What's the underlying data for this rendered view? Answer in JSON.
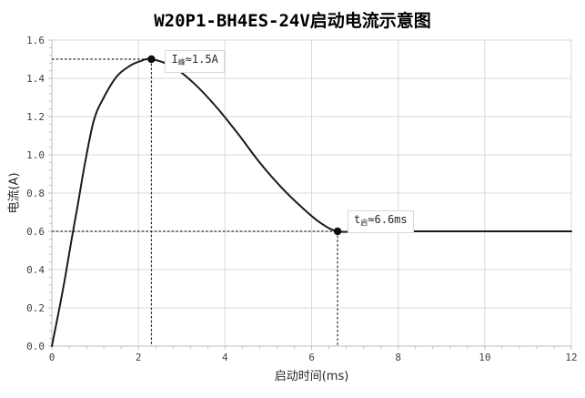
{
  "chart_data": {
    "type": "line",
    "title": "W20P1-BH4ES-24V启动电流示意图",
    "xlabel": "启动时间(ms)",
    "ylabel": "电流(A)",
    "xlim": [
      0,
      12
    ],
    "ylim": [
      0,
      1.6
    ],
    "x_tick_values": [
      0,
      2,
      4,
      6,
      8,
      10,
      12
    ],
    "x_tick_labels": [
      "0",
      "2",
      "4",
      "6",
      "8",
      "10",
      "12"
    ],
    "y_tick_values": [
      0,
      0.2,
      0.4,
      0.6,
      0.8,
      1.0,
      1.2,
      1.4,
      1.6
    ],
    "y_tick_labels": [
      "0.0",
      "0.2",
      "0.4",
      "0.6",
      "0.8",
      "1.0",
      "1.2",
      "1.4",
      "1.6"
    ],
    "x_minor_step": 0.4,
    "y_minor_step": 0.04,
    "grid": true,
    "legend": "none",
    "series": [
      {
        "name": "启动电流",
        "points": [
          [
            0,
            0
          ],
          [
            0.15,
            0.17
          ],
          [
            0.3,
            0.35
          ],
          [
            0.45,
            0.55
          ],
          [
            0.6,
            0.74
          ],
          [
            0.76,
            0.95
          ],
          [
            0.97,
            1.18
          ],
          [
            1.2,
            1.3
          ],
          [
            1.5,
            1.41
          ],
          [
            1.8,
            1.465
          ],
          [
            2.05,
            1.49
          ],
          [
            2.3,
            1.5
          ],
          [
            2.8,
            1.46
          ],
          [
            3.3,
            1.37
          ],
          [
            3.8,
            1.25
          ],
          [
            4.3,
            1.11
          ],
          [
            4.8,
            0.96
          ],
          [
            5.3,
            0.83
          ],
          [
            5.8,
            0.72
          ],
          [
            6.2,
            0.645
          ],
          [
            6.6,
            0.6
          ],
          [
            7.2,
            0.6
          ],
          [
            9,
            0.6
          ],
          [
            12,
            0.6
          ]
        ]
      }
    ],
    "markers": [
      {
        "x": 2.3,
        "y": 1.5,
        "label_pre": "I",
        "label_sub": "峰",
        "label_post": "≈1.5A",
        "label_text": "I峰≈1.5A"
      },
      {
        "x": 6.6,
        "y": 0.6,
        "label_pre": "t",
        "label_sub": "启",
        "label_post": "≈6.6ms",
        "label_text": "t启≈6.6ms"
      }
    ],
    "colors": {
      "curve": "#1a1a1a",
      "grid": "#d9d9d9",
      "axis": "#bfbfbf",
      "tick_text": "#404040",
      "dash": "#262626",
      "dot": "#0d0d0d",
      "annotation_border": "#d9d9d9",
      "annotation_text": "#262626",
      "background": "#ffffff"
    }
  }
}
